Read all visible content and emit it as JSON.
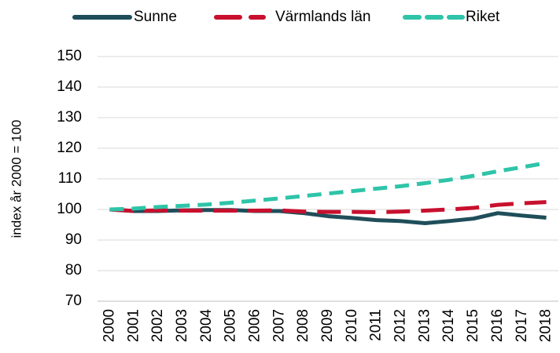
{
  "chart_data": {
    "type": "line",
    "y_label": "index år 2000 = 100",
    "categories": [
      "2000",
      "2001",
      "2002",
      "2003",
      "2004",
      "2005",
      "2006",
      "2007",
      "2008",
      "2009",
      "2010",
      "2011",
      "2012",
      "2013",
      "2014",
      "2015",
      "2016",
      "2017",
      "2018"
    ],
    "series": [
      {
        "name": "Sunne",
        "color": "#1f4e5a",
        "line_style": "solid",
        "values": [
          100,
          99.5,
          99.5,
          99.7,
          99.8,
          99.8,
          99.5,
          99.5,
          98.8,
          97.8,
          97.2,
          96.5,
          96.2,
          95.5,
          96.2,
          97,
          98.8,
          98,
          97.3
        ]
      },
      {
        "name": "Värmlands län",
        "color": "#c8102e",
        "line_style": "dashed",
        "values": [
          100,
          99.5,
          99.7,
          99.6,
          99.6,
          99.6,
          99.6,
          99.7,
          99.3,
          99.2,
          99.2,
          99.1,
          99.3,
          99.6,
          100,
          100.5,
          101.5,
          102,
          102.4
        ]
      },
      {
        "name": "Riket",
        "color": "#2ec4a8",
        "line_style": "dashed",
        "values": [
          100,
          100.3,
          100.8,
          101.2,
          101.6,
          102.2,
          102.9,
          103.6,
          104.4,
          105.2,
          106,
          106.8,
          107.6,
          108.6,
          109.7,
          111,
          112.5,
          113.8,
          115.2
        ]
      }
    ],
    "ylim": [
      70,
      150
    ],
    "yticks": [
      70,
      80,
      90,
      100,
      110,
      120,
      130,
      140,
      150
    ],
    "grid": true,
    "legend": "top"
  }
}
